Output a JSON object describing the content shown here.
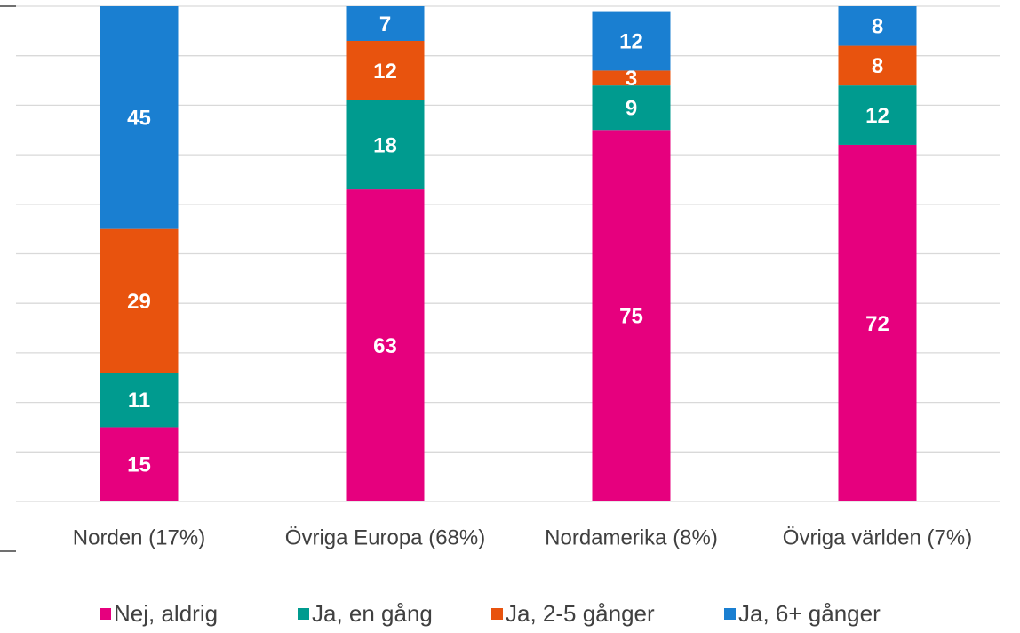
{
  "chart_data": {
    "type": "stacked_bar",
    "categories": [
      "Norden (17%)",
      "Övriga Europa (68%)",
      "Nordamerika (8%)",
      "Övriga världen (7%)"
    ],
    "series": [
      {
        "name": "Nej, aldrig",
        "color": "#e6007e",
        "values": [
          15,
          63,
          75,
          72
        ]
      },
      {
        "name": "Ja, en gång",
        "color": "#009b8f",
        "values": [
          11,
          18,
          9,
          12
        ]
      },
      {
        "name": "Ja, 2-5 gånger",
        "color": "#e8530e",
        "values": [
          29,
          12,
          3,
          8
        ]
      },
      {
        "name": "Ja, 6+ gånger",
        "color": "#1a7fd1",
        "values": [
          45,
          7,
          12,
          8
        ]
      }
    ],
    "ylim": [
      0,
      100
    ],
    "yticks": [
      0,
      10,
      20,
      30,
      40,
      50,
      60,
      70,
      80,
      90,
      100
    ],
    "grid": true,
    "legend": "bottom"
  }
}
